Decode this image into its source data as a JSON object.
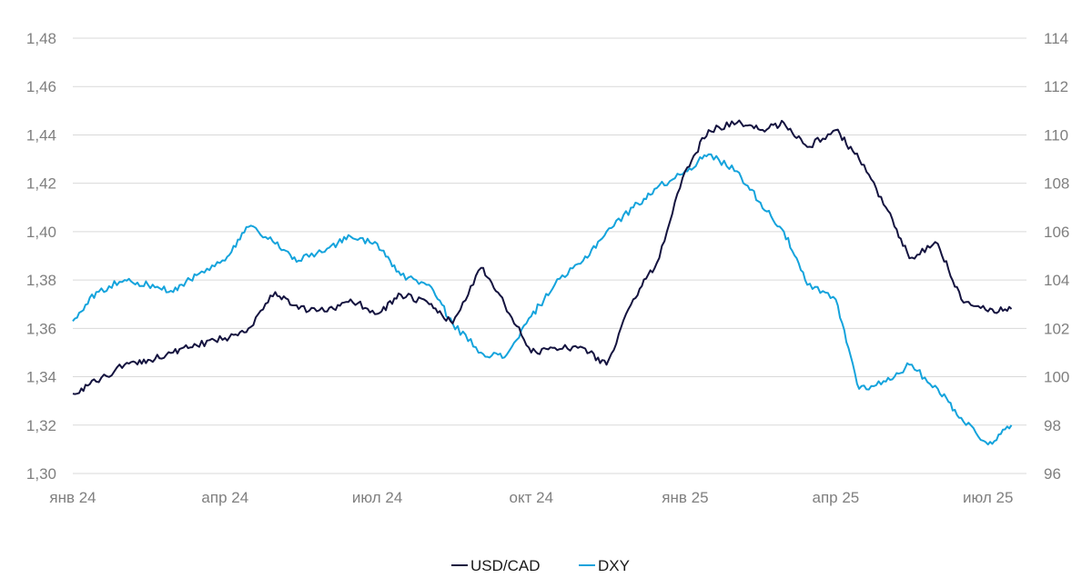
{
  "chart_data": {
    "type": "line",
    "x_labels": [
      "янв 24",
      "апр 24",
      "июл 24",
      "окт 24",
      "янв 25",
      "апр 25",
      "июл 25"
    ],
    "y_left": {
      "ticks": [
        "1,30",
        "1,32",
        "1,34",
        "1,36",
        "1,38",
        "1,40",
        "1,42",
        "1,44",
        "1,46",
        "1,48"
      ],
      "ylim": [
        1.3,
        1.48
      ]
    },
    "y_right": {
      "ticks": [
        "96",
        "98",
        "100",
        "102",
        "104",
        "106",
        "108",
        "110",
        "112",
        "114"
      ],
      "ylim": [
        96,
        114
      ]
    },
    "grid": "horizontal",
    "legend_position": "bottom-center",
    "colors": {
      "USD/CAD": "#14133f",
      "DXY": "#14a3dc"
    },
    "series": [
      {
        "name": "USD/CAD",
        "axis": "left",
        "x": [
          "2024-01-01",
          "2024-01-15",
          "2024-02-01",
          "2024-02-15",
          "2024-03-01",
          "2024-03-15",
          "2024-04-01",
          "2024-04-15",
          "2024-05-01",
          "2024-05-15",
          "2024-06-01",
          "2024-06-15",
          "2024-07-01",
          "2024-07-15",
          "2024-08-01",
          "2024-08-15",
          "2024-09-01",
          "2024-09-15",
          "2024-10-01",
          "2024-10-15",
          "2024-11-01",
          "2024-11-15",
          "2024-12-01",
          "2024-12-15",
          "2025-01-01",
          "2025-01-15",
          "2025-02-01",
          "2025-02-15",
          "2025-03-01",
          "2025-03-15",
          "2025-04-01",
          "2025-04-15",
          "2025-05-01",
          "2025-05-15",
          "2025-06-01",
          "2025-06-15",
          "2025-07-01",
          "2025-07-15"
        ],
        "values": [
          1.333,
          1.338,
          1.345,
          1.347,
          1.35,
          1.353,
          1.356,
          1.36,
          1.375,
          1.368,
          1.367,
          1.372,
          1.366,
          1.374,
          1.37,
          1.362,
          1.385,
          1.37,
          1.35,
          1.352,
          1.352,
          1.345,
          1.372,
          1.387,
          1.425,
          1.442,
          1.445,
          1.442,
          1.445,
          1.435,
          1.442,
          1.43,
          1.41,
          1.389,
          1.395,
          1.372,
          1.367,
          1.368
        ]
      },
      {
        "name": "DXY",
        "axis": "right",
        "x": [
          "2024-01-01",
          "2024-01-15",
          "2024-02-01",
          "2024-02-15",
          "2024-03-01",
          "2024-03-15",
          "2024-04-01",
          "2024-04-15",
          "2024-05-01",
          "2024-05-15",
          "2024-06-01",
          "2024-06-15",
          "2024-07-01",
          "2024-07-15",
          "2024-08-01",
          "2024-08-15",
          "2024-09-01",
          "2024-09-15",
          "2024-10-01",
          "2024-10-15",
          "2024-11-01",
          "2024-11-15",
          "2024-12-01",
          "2024-12-15",
          "2025-01-01",
          "2025-01-15",
          "2025-02-01",
          "2025-02-15",
          "2025-03-01",
          "2025-03-15",
          "2025-04-01",
          "2025-04-15",
          "2025-05-01",
          "2025-05-15",
          "2025-06-01",
          "2025-06-15",
          "2025-07-01",
          "2025-07-15"
        ],
        "values": [
          102.3,
          103.5,
          104.0,
          103.8,
          103.5,
          104.2,
          104.8,
          106.2,
          105.5,
          104.8,
          105.3,
          105.8,
          105.5,
          104.2,
          103.8,
          102.2,
          101.0,
          100.8,
          102.5,
          103.8,
          104.8,
          106.0,
          107.0,
          107.8,
          108.5,
          109.2,
          108.5,
          107.2,
          106.0,
          103.8,
          103.2,
          99.5,
          99.8,
          100.5,
          99.5,
          98.3,
          97.2,
          98.0
        ]
      }
    ]
  }
}
